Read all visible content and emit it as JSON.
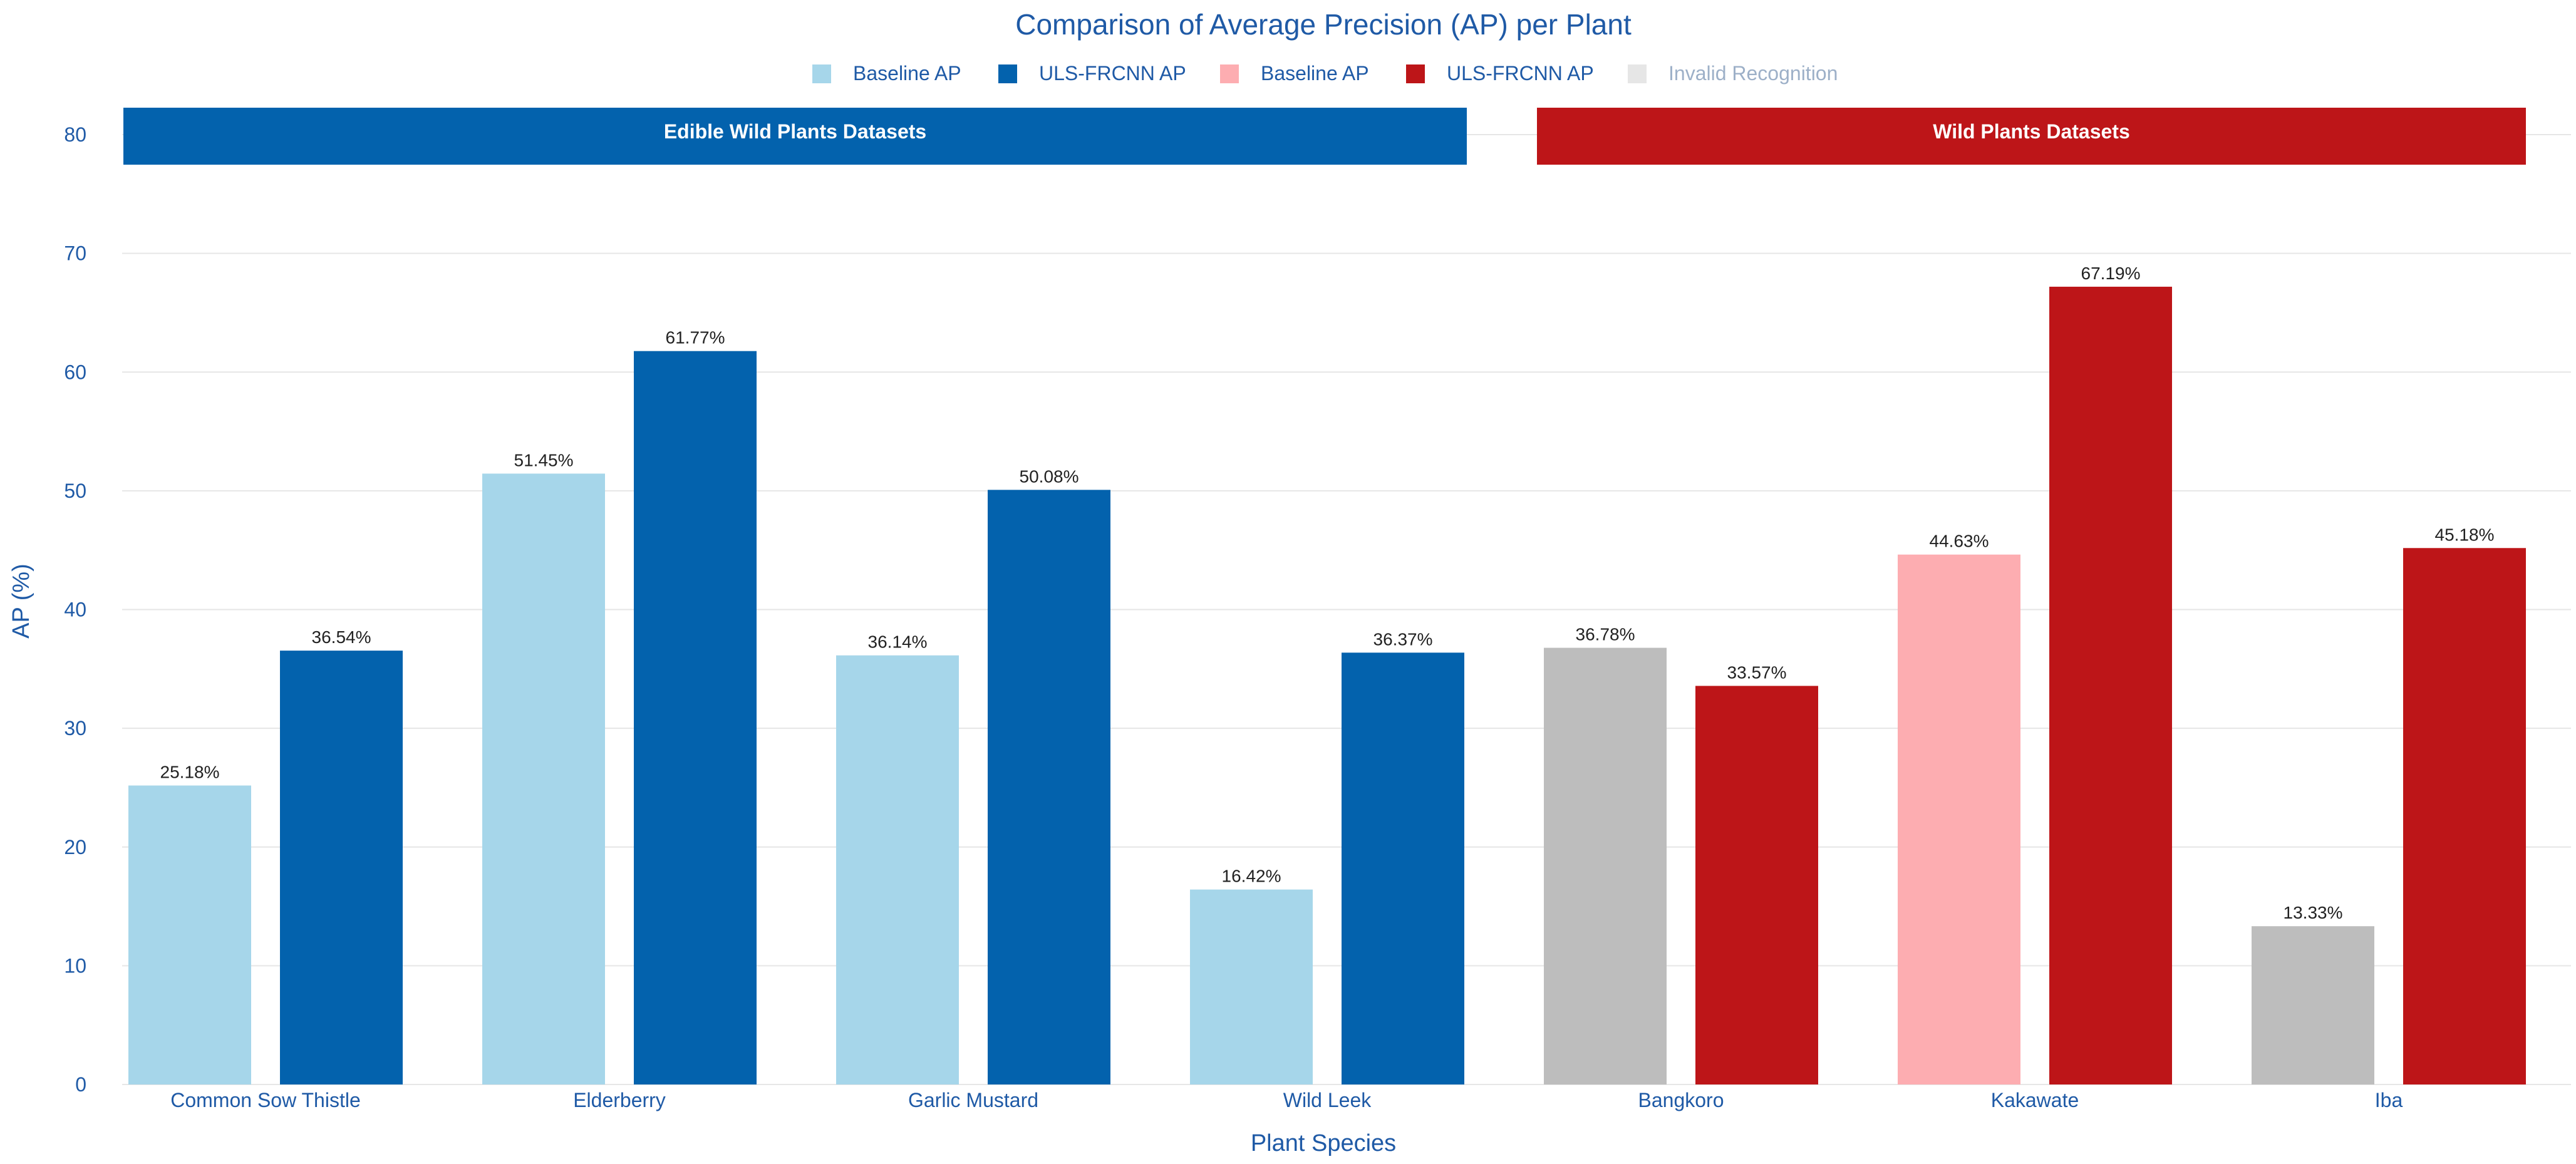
{
  "chart_data": {
    "type": "bar",
    "title": "Comparison of Average Precision (AP) per Plant",
    "xlabel": "Plant Species",
    "ylabel": "AP (%)",
    "ylim": [
      0,
      80
    ],
    "yticks": [
      0,
      10,
      20,
      30,
      40,
      50,
      60,
      70,
      80
    ],
    "grid": true,
    "legend": [
      {
        "label": "Baseline AP",
        "color": "#a6d6ea"
      },
      {
        "label": "ULS-FRCNN AP",
        "color": "#0362ad"
      },
      {
        "label": "Baseline AP",
        "color": "#fdadb1"
      },
      {
        "label": "ULS-FRCNN AP",
        "color": "#bd1518"
      },
      {
        "label": "Invalid Recognition",
        "color": "#e6e6e6",
        "dimmed": true
      }
    ],
    "groups": [
      {
        "label": "Edible Wild Plants Datasets",
        "color": "#0362ad",
        "categories": [
          "Common Sow Thistle",
          "Elderberry",
          "Garlic Mustard",
          "Wild Leek"
        ]
      },
      {
        "label": "Wild Plants Datasets",
        "color": "#bd1518",
        "categories": [
          "Bangkoro",
          "Kakawate",
          "Iba"
        ]
      }
    ],
    "categories": [
      "Common Sow Thistle",
      "Elderberry",
      "Garlic Mustard",
      "Wild Leek",
      "Bangkoro",
      "Kakawate",
      "Iba"
    ],
    "series": [
      {
        "name": "Baseline AP",
        "values": [
          25.18,
          51.45,
          36.14,
          16.42,
          36.78,
          44.63,
          13.33
        ],
        "labels": [
          "25.18%",
          "51.45%",
          "36.14%",
          "16.42%",
          "36.78%",
          "44.63%",
          "13.33%"
        ],
        "colors": [
          "#a6d6ea",
          "#a6d6ea",
          "#a6d6ea",
          "#a6d6ea",
          "#bdbdbd",
          "#fdadb1",
          "#bdbdbd"
        ]
      },
      {
        "name": "ULS-FRCNN AP",
        "values": [
          36.54,
          61.77,
          50.08,
          36.37,
          33.57,
          67.19,
          45.18
        ],
        "labels": [
          "36.54%",
          "61.77%",
          "50.08%",
          "36.37%",
          "33.57%",
          "67.19%",
          "45.18%"
        ],
        "colors": [
          "#0362ad",
          "#0362ad",
          "#0362ad",
          "#0362ad",
          "#bd1518",
          "#bd1518",
          "#bd1518"
        ]
      }
    ]
  }
}
